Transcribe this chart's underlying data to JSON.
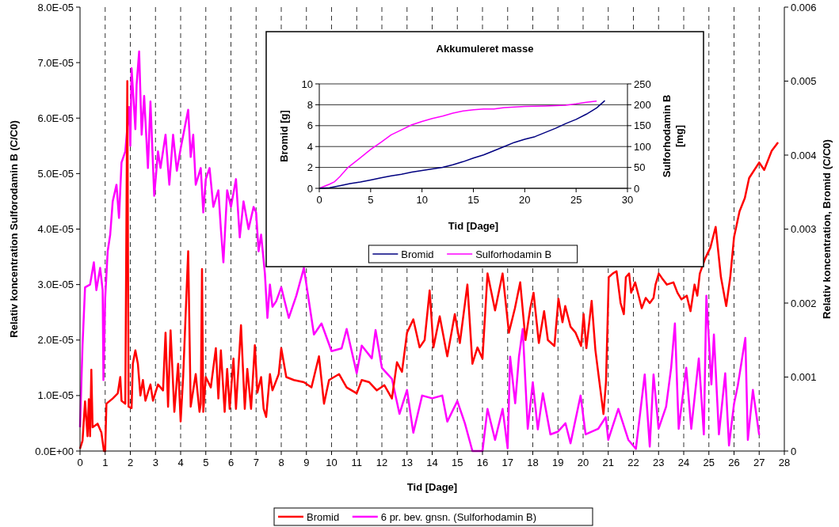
{
  "chart_data": [
    {
      "type": "line",
      "xlabel": "Tid [Dage]",
      "ylabel": "Relativ koncentration Sulforodamin B (C/C0)",
      "y2label": "Relativ koncentration, Bromid (C/C0)",
      "xlim": [
        0,
        28
      ],
      "xticks": [
        0,
        1,
        2,
        3,
        4,
        5,
        6,
        7,
        8,
        9,
        10,
        11,
        12,
        13,
        14,
        15,
        16,
        17,
        18,
        19,
        20,
        21,
        22,
        23,
        24,
        25,
        26,
        27,
        28
      ],
      "ylim": [
        0,
        8e-05
      ],
      "yticks": [
        {
          "value": 0,
          "label": "0.0E+00"
        },
        {
          "value": 1e-05,
          "label": "1.0E-05"
        },
        {
          "value": 2e-05,
          "label": "2.0E-05"
        },
        {
          "value": 3e-05,
          "label": "3.0E-05"
        },
        {
          "value": 4e-05,
          "label": "4.0E-05"
        },
        {
          "value": 5e-05,
          "label": "5.0E-05"
        },
        {
          "value": 6e-05,
          "label": "6.0E-05"
        },
        {
          "value": 7e-05,
          "label": "7.0E-05"
        },
        {
          "value": 8e-05,
          "label": "8.0E-05"
        }
      ],
      "y2lim": [
        0,
        0.006
      ],
      "y2ticks": [
        0,
        0.001,
        0.002,
        0.003,
        0.004,
        0.005,
        0.006
      ],
      "grid": "x",
      "legend": "bottom",
      "line_style": "solid",
      "marker": "none",
      "series": [
        {
          "name": "Bromid",
          "color": "#ff0000",
          "axis": "y2",
          "x": [
            0,
            0.1,
            0.2,
            0.3,
            0.35,
            0.4,
            0.45,
            0.5,
            0.7,
            0.85,
            0.95,
            1.0,
            1.05,
            1.3,
            1.5,
            1.6,
            1.65,
            1.8,
            1.88,
            1.93,
            2.05,
            2.1,
            2.2,
            2.3,
            2.4,
            2.5,
            2.6,
            2.8,
            2.9,
            3.1,
            3.3,
            3.4,
            3.5,
            3.6,
            3.75,
            3.9,
            4.0,
            4.1,
            4.3,
            4.4,
            4.6,
            4.75,
            4.8,
            4.85,
            4.9,
            5.0,
            5.2,
            5.4,
            5.5,
            5.6,
            5.75,
            5.85,
            5.95,
            6.1,
            6.2,
            6.4,
            6.55,
            6.65,
            6.8,
            6.95,
            7.05,
            7.2,
            7.3,
            7.4,
            7.55,
            7.65,
            7.9,
            8.0,
            8.2,
            8.5,
            8.9,
            9.2,
            9.5,
            9.7,
            9.9,
            10.3,
            10.6,
            11.0,
            11.2,
            11.5,
            11.8,
            12.1,
            12.4,
            12.6,
            12.8,
            13.0,
            13.25,
            13.5,
            13.7,
            13.9,
            14.05,
            14.3,
            14.6,
            14.9,
            15.1,
            15.4,
            15.6,
            15.8,
            16.0,
            16.2,
            16.5,
            16.8,
            17.05,
            17.29,
            17.5,
            17.71,
            17.9,
            18.03,
            18.24,
            18.45,
            18.6,
            18.86,
            19.02,
            19.18,
            19.29,
            19.5,
            19.7,
            19.92,
            20.02,
            20.13,
            20.34,
            20.49,
            20.65,
            20.81,
            20.91,
            21.02,
            21.18,
            21.33,
            21.49,
            21.62,
            21.7,
            21.83,
            21.91,
            22.07,
            22.23,
            22.33,
            22.49,
            22.65,
            22.8,
            22.88,
            23.01,
            23.17,
            23.33,
            23.59,
            23.75,
            23.91,
            24.12,
            24.27,
            24.43,
            24.54,
            24.64,
            24.85,
            25.06,
            25.27,
            25.48,
            25.69,
            25.85,
            26.0,
            26.22,
            26.43,
            26.6,
            27.0,
            27.2,
            27.5,
            27.75
          ],
          "values": [
            3e-05,
            0.00014,
            0.00067,
            0.0002,
            0.0007,
            0.0002,
            0.0011,
            0.00032,
            0.00037,
            0.00025,
            0,
            0,
            0.00064,
            0.00071,
            0.00078,
            0.001,
            0.00068,
            0.00064,
            0.005,
            0.0006,
            0.00058,
            0.00118,
            0.00136,
            0.00118,
            0.00075,
            0.00096,
            0.00068,
            0.0009,
            0.00068,
            0.0009,
            0.00082,
            0.0016,
            0.0006,
            0.00163,
            0.00053,
            0.00118,
            0.0004,
            0.001,
            0.0027,
            0.0006,
            0.00104,
            0.00053,
            0.00064,
            0.00246,
            0.00053,
            0.001,
            0.00086,
            0.00139,
            0.00071,
            0.00136,
            0.00053,
            0.00111,
            0.00057,
            0.00125,
            0.00057,
            0.0017,
            0.00057,
            0.00111,
            0.00057,
            0.00143,
            0.00079,
            0.001,
            0.00057,
            0.00046,
            0.00104,
            0.00082,
            0.00104,
            0.00139,
            0.001,
            0.00096,
            0.00093,
            0.00086,
            0.00128,
            0.00064,
            0.00096,
            0.00104,
            0.00086,
            0.00078,
            0.00096,
            0.00093,
            0.00082,
            0.00089,
            0.00071,
            0.0012,
            0.00107,
            0.0016,
            0.00178,
            0.0014,
            0.0015,
            0.00217,
            0.0014,
            0.00182,
            0.00128,
            0.00185,
            0.00146,
            0.00225,
            0.00118,
            0.0014,
            0.00125,
            0.0024,
            0.0019,
            0.0024,
            0.0016,
            0.00193,
            0.00228,
            0.0015,
            0.00193,
            0.00214,
            0.00146,
            0.00189,
            0.0015,
            0.00142,
            0.00206,
            0.00174,
            0.00196,
            0.00168,
            0.0016,
            0.00142,
            0.00185,
            0.00139,
            0.00203,
            0.00136,
            0.00093,
            0.0005,
            0.00093,
            0.00235,
            0.0024,
            0.00243,
            0.002,
            0.00185,
            0.00235,
            0.0024,
            0.00214,
            0.00228,
            0.00207,
            0.00193,
            0.00207,
            0.002,
            0.00207,
            0.00225,
            0.0024,
            0.00232,
            0.00225,
            0.00228,
            0.00214,
            0.00205,
            0.0021,
            0.00189,
            0.00225,
            0.0021,
            0.0024,
            0.0026,
            0.00275,
            0.00303,
            0.00235,
            0.00196,
            0.00235,
            0.00289,
            0.00324,
            0.00342,
            0.00369,
            0.0039,
            0.0038,
            0.00406,
            0.00417
          ]
        },
        {
          "name": "6 pr. bev. gnsn. (Sulforhodamin B)",
          "color": "#ff00ff",
          "axis": "y",
          "x": [
            0,
            0.1,
            0.2,
            0.4,
            0.55,
            0.65,
            0.8,
            0.9,
            0.93,
            1.0,
            1.1,
            1.2,
            1.3,
            1.45,
            1.55,
            1.65,
            1.8,
            1.95,
            2.0,
            2.05,
            2.2,
            2.25,
            2.35,
            2.45,
            2.55,
            2.7,
            2.8,
            2.95,
            3.1,
            3.2,
            3.4,
            3.55,
            3.7,
            3.85,
            4.0,
            4.15,
            4.3,
            4.4,
            4.5,
            4.6,
            4.8,
            4.9,
            5.0,
            5.15,
            5.3,
            5.5,
            5.6,
            5.7,
            5.85,
            6.0,
            6.2,
            6.35,
            6.5,
            6.7,
            6.9,
            7.0,
            7.1,
            7.2,
            7.35,
            7.45,
            7.55,
            7.65,
            7.8,
            8.0,
            8.3,
            8.6,
            8.9,
            9.3,
            9.6,
            10.0,
            10.4,
            10.6,
            11.0,
            11.2,
            11.6,
            11.75,
            12.0,
            12.4,
            12.7,
            13.0,
            13.25,
            13.6,
            14.0,
            14.4,
            14.6,
            15.0,
            15.3,
            15.6,
            16.0,
            16.2,
            16.5,
            16.8,
            17.0,
            17.1,
            17.3,
            17.45,
            17.6,
            17.8,
            18.0,
            18.2,
            18.4,
            18.7,
            19.0,
            19.3,
            19.5,
            19.9,
            20.1,
            20.6,
            20.9,
            21.0,
            21.4,
            21.8,
            22.1,
            22.45,
            22.65,
            22.8,
            23.0,
            23.3,
            23.5,
            23.65,
            23.8,
            24.1,
            24.3,
            24.6,
            24.8,
            24.9,
            25.1,
            25.2,
            25.4,
            25.65,
            25.8,
            26.0,
            26.15,
            26.45,
            26.55,
            26.75,
            27.0
          ],
          "values": [
            4.3e-06,
            1.9e-05,
            2.95e-05,
            3e-05,
            3.4e-05,
            2.9e-05,
            3.3e-05,
            2.9e-05,
            1.28e-05,
            2.75e-05,
            3.6e-05,
            3.9e-05,
            4.5e-05,
            4.8e-05,
            4.2e-05,
            5.2e-05,
            5.4e-05,
            6.2e-05,
            5.5e-05,
            6.9e-05,
            5.8e-05,
            6.6e-05,
            7.2e-05,
            5.7e-05,
            6.4e-05,
            5.1e-05,
            6.3e-05,
            4.6e-05,
            5.4e-05,
            5.1e-05,
            5.7e-05,
            4.8e-05,
            5.7e-05,
            5.05e-05,
            5.45e-05,
            5.8e-05,
            6.15e-05,
            5.3e-05,
            5.7e-05,
            4.8e-05,
            5.1e-05,
            4.3e-05,
            4.9e-05,
            5.1e-05,
            4.4e-05,
            4.7e-05,
            4e-05,
            3.4e-05,
            4.7e-05,
            4.4e-05,
            4.9e-05,
            3.85e-05,
            4.5e-05,
            4e-05,
            4.4e-05,
            4.3e-05,
            3.6e-05,
            3.9e-05,
            3.2e-05,
            2.4e-05,
            3e-05,
            2.6e-05,
            2.7e-05,
            2.95e-05,
            2.4e-05,
            2.8e-05,
            3.3e-05,
            2.1e-05,
            2.3e-05,
            1.8e-05,
            1.85e-05,
            2.2e-05,
            1.4e-05,
            1.9e-05,
            1.67e-05,
            2.18e-05,
            1.5e-05,
            1.3e-05,
            6.7e-06,
            1.1e-05,
            3.3e-06,
            1e-05,
            9.5e-06,
            1e-05,
            5.3e-06,
            9e-06,
            5e-06,
            0,
            0,
            7.6e-06,
            2e-06,
            7.6e-06,
            5e-07,
            1.7e-05,
            8.6e-06,
            1.7e-05,
            2.2e-05,
            4e-06,
            1.24e-05,
            3.9e-06,
            1.04e-05,
            3e-06,
            3.5e-06,
            5e-06,
            1.4e-06,
            1e-05,
            3e-06,
            4e-06,
            6.1e-06,
            2e-06,
            7.6e-06,
            2e-06,
            4e-07,
            1.38e-05,
            8e-07,
            1.38e-05,
            4e-06,
            8e-06,
            1.5e-05,
            2.3e-05,
            4e-06,
            1.5e-05,
            4e-06,
            1.67e-05,
            3e-06,
            2.8e-05,
            1.2e-05,
            2.1e-05,
            3e-06,
            1.4e-05,
            1e-06,
            8.5e-06,
            1.18e-05,
            2.04e-05,
            2e-06,
            1.1e-05,
            2.9e-06
          ]
        }
      ]
    },
    {
      "type": "line",
      "title": "Akkumuleret masse",
      "xlabel": "Tid [Dage]",
      "ylabel": "Bromid [g]",
      "y2label": "Sulforhodamin B [mg]",
      "xlim": [
        0,
        30
      ],
      "xticks": [
        0,
        5,
        10,
        15,
        20,
        25,
        30
      ],
      "ylim": [
        0,
        10
      ],
      "yticks": [
        0,
        2,
        4,
        6,
        8,
        10
      ],
      "y2lim": [
        0,
        250
      ],
      "y2ticks": [
        0,
        50,
        100,
        150,
        200,
        250
      ],
      "grid": "y",
      "legend": "bottom",
      "line_style": "solid",
      "marker": "none",
      "series": [
        {
          "name": "Bromid",
          "color": "#000080",
          "axis": "y",
          "x": [
            0,
            1,
            2,
            3,
            4,
            5,
            6,
            7,
            8,
            9,
            10,
            11,
            12,
            13,
            14,
            15,
            16,
            17,
            18,
            19,
            20,
            21,
            22,
            23,
            24,
            25,
            26,
            27,
            27.8
          ],
          "values": [
            0,
            0.05,
            0.25,
            0.45,
            0.6,
            0.8,
            1.0,
            1.2,
            1.35,
            1.55,
            1.7,
            1.85,
            2.0,
            2.25,
            2.55,
            2.9,
            3.2,
            3.6,
            4.0,
            4.4,
            4.7,
            4.95,
            5.35,
            5.75,
            6.2,
            6.6,
            7.1,
            7.7,
            8.4
          ]
        },
        {
          "name": "Sulforhodamin B",
          "color": "#ff00ff",
          "axis": "y2",
          "x": [
            0,
            1,
            1.5,
            2,
            2.8,
            4,
            5,
            6,
            7,
            8,
            9,
            10,
            11,
            12,
            13,
            14,
            15,
            16,
            17,
            18,
            20,
            22,
            24,
            25,
            26,
            27
          ],
          "values": [
            0,
            10,
            16,
            28,
            50,
            73,
            93,
            110,
            128,
            140,
            152,
            160,
            167,
            173,
            180,
            185,
            188,
            190,
            190,
            193,
            196,
            197,
            199,
            202,
            206,
            209
          ]
        }
      ]
    }
  ]
}
